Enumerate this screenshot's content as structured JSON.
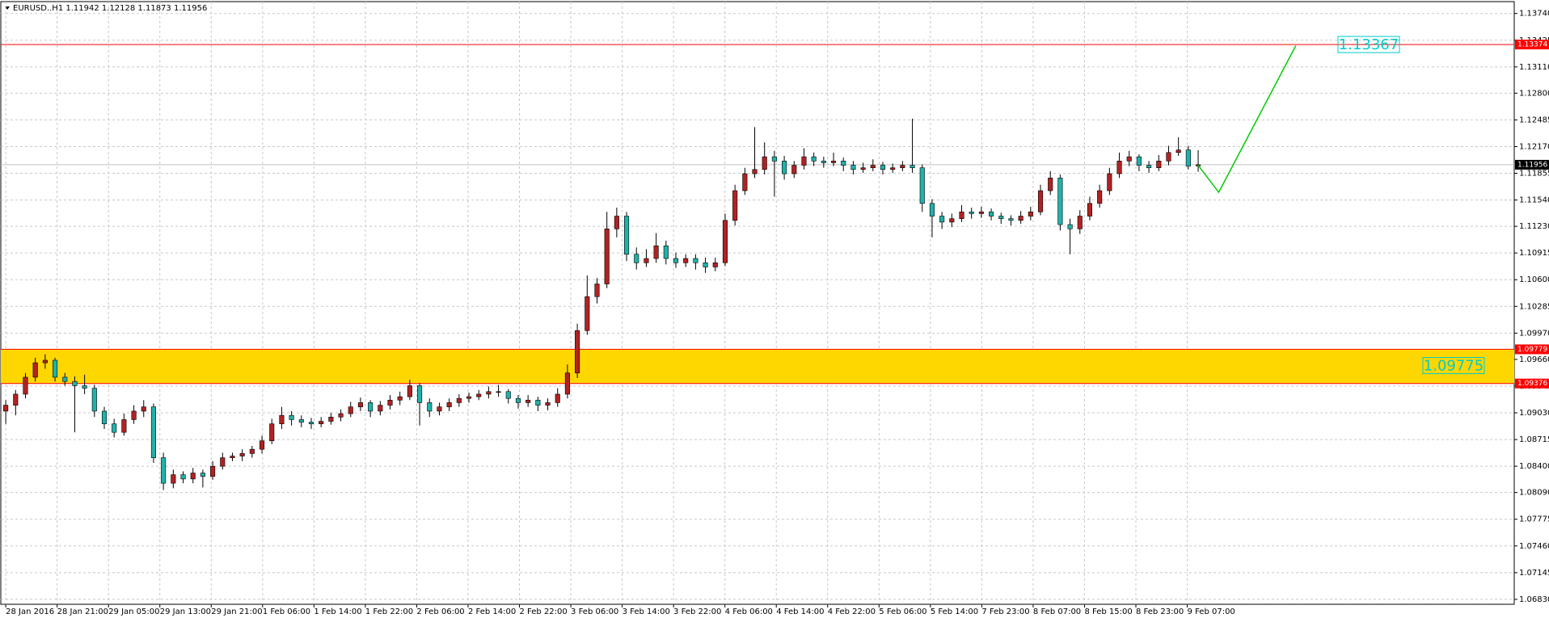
{
  "chart_data": {
    "type": "candlestick",
    "header": "EURUSD..H1  1.11942 1.12128 1.11873 1.11956",
    "categories": [
      "28 Jan 2016",
      "28 Jan 21:00",
      "29 Jan 05:00",
      "29 Jan 13:00",
      "29 Jan 21:00",
      "1 Feb 06:00",
      "1 Feb 14:00",
      "1 Feb 22:00",
      "2 Feb 06:00",
      "2 Feb 14:00",
      "2 Feb 22:00",
      "3 Feb 06:00",
      "3 Feb 14:00",
      "3 Feb 22:00",
      "4 Feb 06:00",
      "4 Feb 14:00",
      "4 Feb 22:00",
      "5 Feb 06:00",
      "5 Feb 14:00",
      "7 Feb 23:00",
      "8 Feb 07:00",
      "8 Feb 15:00",
      "8 Feb 23:00",
      "9 Feb 07:00"
    ],
    "ylim": [
      1.06772,
      1.1388
    ],
    "yticks": [
      {
        "value": 1.1374,
        "label": "1.13740"
      },
      {
        "value": 1.13425,
        "label": "1.13425"
      },
      {
        "value": 1.1311,
        "label": "1.13110"
      },
      {
        "value": 1.128,
        "label": "1.12800"
      },
      {
        "value": 1.12485,
        "label": "1.12485"
      },
      {
        "value": 1.1217,
        "label": "1.12170"
      },
      {
        "value": 1.11855,
        "label": "1.11855"
      },
      {
        "value": 1.1154,
        "label": "1.11540"
      },
      {
        "value": 1.1123,
        "label": "1.11230"
      },
      {
        "value": 1.10915,
        "label": "1.10915"
      },
      {
        "value": 1.106,
        "label": "1.10600"
      },
      {
        "value": 1.10285,
        "label": "1.10285"
      },
      {
        "value": 1.0997,
        "label": "1.09970"
      },
      {
        "value": 1.0966,
        "label": "1.09660"
      },
      {
        "value": 1.09345,
        "label": "1.09345"
      },
      {
        "value": 1.0903,
        "label": "1.09030"
      },
      {
        "value": 1.08715,
        "label": "1.08715"
      },
      {
        "value": 1.084,
        "label": "1.08400"
      },
      {
        "value": 1.0809,
        "label": "1.08090"
      },
      {
        "value": 1.07775,
        "label": "1.07775"
      },
      {
        "value": 1.0746,
        "label": "1.07460"
      },
      {
        "value": 1.07145,
        "label": "1.07145"
      },
      {
        "value": 1.0683,
        "label": "1.06830"
      }
    ],
    "grid": true,
    "up_color": "#b22222",
    "down_color": "#20b2aa",
    "ohlc": [
      [
        1.0905,
        1.0918,
        1.089,
        1.0912
      ],
      [
        1.0912,
        1.093,
        1.09,
        1.0925
      ],
      [
        1.0925,
        1.095,
        1.092,
        1.0945
      ],
      [
        1.0945,
        1.0968,
        1.094,
        1.0962
      ],
      [
        1.0962,
        1.0972,
        1.0955,
        1.0965
      ],
      [
        1.0965,
        1.0968,
        1.094,
        1.0945
      ],
      [
        1.0945,
        1.095,
        1.0935,
        1.094
      ],
      [
        1.094,
        1.0946,
        1.088,
        1.0935
      ],
      [
        1.0935,
        1.0948,
        1.0925,
        1.0932
      ],
      [
        1.0932,
        1.0936,
        1.0898,
        1.0905
      ],
      [
        1.0905,
        1.091,
        1.0884,
        1.089
      ],
      [
        1.089,
        1.0896,
        1.0874,
        1.088
      ],
      [
        1.088,
        1.0902,
        1.0876,
        1.0895
      ],
      [
        1.0895,
        1.0912,
        1.089,
        1.0905
      ],
      [
        1.0905,
        1.0918,
        1.0898,
        1.091
      ],
      [
        1.091,
        1.0914,
        1.0844,
        1.085
      ],
      [
        1.085,
        1.0856,
        1.0812,
        1.082
      ],
      [
        1.082,
        1.0836,
        1.0814,
        1.083
      ],
      [
        1.083,
        1.0834,
        1.082,
        1.0825
      ],
      [
        1.0825,
        1.0838,
        1.082,
        1.0832
      ],
      [
        1.0832,
        1.0836,
        1.0815,
        1.0828
      ],
      [
        1.0828,
        1.0846,
        1.0824,
        1.084
      ],
      [
        1.084,
        1.0856,
        1.0836,
        1.085
      ],
      [
        1.085,
        1.0856,
        1.0846,
        1.0852
      ],
      [
        1.0852,
        1.086,
        1.0846,
        1.0855
      ],
      [
        1.0855,
        1.0864,
        1.085,
        1.086
      ],
      [
        1.086,
        1.0876,
        1.0855,
        1.087
      ],
      [
        1.087,
        1.0896,
        1.0866,
        1.089
      ],
      [
        1.089,
        1.091,
        1.0884,
        1.09
      ],
      [
        1.09,
        1.0905,
        1.0888,
        1.0895
      ],
      [
        1.0895,
        1.09,
        1.0886,
        1.0892
      ],
      [
        1.0892,
        1.0897,
        1.0884,
        1.089
      ],
      [
        1.089,
        1.0898,
        1.0886,
        1.0893
      ],
      [
        1.0893,
        1.0903,
        1.0889,
        1.0898
      ],
      [
        1.0898,
        1.0907,
        1.0893,
        1.0902
      ],
      [
        1.0902,
        1.0916,
        1.0898,
        1.091
      ],
      [
        1.091,
        1.0921,
        1.0905,
        1.0915
      ],
      [
        1.0915,
        1.0918,
        1.0898,
        1.0905
      ],
      [
        1.0905,
        1.0917,
        1.09,
        1.0912
      ],
      [
        1.0912,
        1.0924,
        1.0907,
        1.0918
      ],
      [
        1.0918,
        1.0928,
        1.0912,
        1.0922
      ],
      [
        1.0922,
        1.0942,
        1.0918,
        1.0935
      ],
      [
        1.0935,
        1.0938,
        1.0888,
        1.0915
      ],
      [
        1.0915,
        1.092,
        1.0898,
        1.0905
      ],
      [
        1.0905,
        1.0915,
        1.09,
        1.091
      ],
      [
        1.091,
        1.092,
        1.0905,
        1.0915
      ],
      [
        1.0915,
        1.0925,
        1.091,
        1.092
      ],
      [
        1.092,
        1.0927,
        1.0915,
        1.0922
      ],
      [
        1.0922,
        1.093,
        1.0918,
        1.0925
      ],
      [
        1.0925,
        1.0934,
        1.092,
        1.0928
      ],
      [
        1.0928,
        1.0936,
        1.0922,
        1.0928
      ],
      [
        1.0928,
        1.0931,
        1.0914,
        1.092
      ],
      [
        1.092,
        1.0924,
        1.0908,
        1.0915
      ],
      [
        1.0915,
        1.0924,
        1.091,
        1.0918
      ],
      [
        1.0918,
        1.0922,
        1.0905,
        1.0912
      ],
      [
        1.0912,
        1.092,
        1.0906,
        1.0915
      ],
      [
        1.0915,
        1.0932,
        1.091,
        1.0925
      ],
      [
        1.0925,
        1.096,
        1.092,
        1.095
      ],
      [
        1.095,
        1.1008,
        1.0944,
        1.1
      ],
      [
        1.1,
        1.1065,
        1.0995,
        1.104
      ],
      [
        1.104,
        1.1062,
        1.1032,
        1.1055
      ],
      [
        1.1055,
        1.114,
        1.105,
        1.112
      ],
      [
        1.112,
        1.1145,
        1.111,
        1.1135
      ],
      [
        1.1135,
        1.114,
        1.1082,
        1.109
      ],
      [
        1.109,
        1.1098,
        1.1072,
        1.108
      ],
      [
        1.108,
        1.1096,
        1.1075,
        1.1085
      ],
      [
        1.1085,
        1.1115,
        1.108,
        1.11
      ],
      [
        1.11,
        1.1106,
        1.1078,
        1.1085
      ],
      [
        1.1085,
        1.1092,
        1.1074,
        1.108
      ],
      [
        1.108,
        1.109,
        1.1075,
        1.1085
      ],
      [
        1.1085,
        1.109,
        1.1072,
        1.108
      ],
      [
        1.108,
        1.1086,
        1.1068,
        1.1075
      ],
      [
        1.1075,
        1.1086,
        1.107,
        1.108
      ],
      [
        1.108,
        1.1138,
        1.1076,
        1.113
      ],
      [
        1.113,
        1.1172,
        1.1124,
        1.1165
      ],
      [
        1.1165,
        1.1192,
        1.116,
        1.1185
      ],
      [
        1.1185,
        1.124,
        1.118,
        1.119
      ],
      [
        1.119,
        1.1222,
        1.1184,
        1.1205
      ],
      [
        1.1205,
        1.1212,
        1.1158,
        1.12
      ],
      [
        1.12,
        1.1206,
        1.1178,
        1.1185
      ],
      [
        1.1185,
        1.12,
        1.118,
        1.1195
      ],
      [
        1.1195,
        1.1215,
        1.119,
        1.1205
      ],
      [
        1.1205,
        1.121,
        1.1194,
        1.12
      ],
      [
        1.12,
        1.1205,
        1.1192,
        1.1198
      ],
      [
        1.1198,
        1.121,
        1.1194,
        1.12
      ],
      [
        1.12,
        1.1204,
        1.1188,
        1.1195
      ],
      [
        1.1195,
        1.12,
        1.1184,
        1.119
      ],
      [
        1.119,
        1.1198,
        1.1186,
        1.1192
      ],
      [
        1.1192,
        1.1202,
        1.1188,
        1.1195
      ],
      [
        1.1195,
        1.1199,
        1.1184,
        1.119
      ],
      [
        1.119,
        1.1197,
        1.1186,
        1.1192
      ],
      [
        1.1192,
        1.12,
        1.1188,
        1.1195
      ],
      [
        1.1195,
        1.125,
        1.1186,
        1.1192
      ],
      [
        1.1192,
        1.1196,
        1.114,
        1.115
      ],
      [
        1.115,
        1.1155,
        1.111,
        1.1135
      ],
      [
        1.1135,
        1.114,
        1.112,
        1.1128
      ],
      [
        1.1128,
        1.1138,
        1.1122,
        1.1132
      ],
      [
        1.1132,
        1.1148,
        1.1128,
        1.114
      ],
      [
        1.114,
        1.1145,
        1.1132,
        1.1138
      ],
      [
        1.1138,
        1.1146,
        1.1133,
        1.114
      ],
      [
        1.114,
        1.1144,
        1.113,
        1.1135
      ],
      [
        1.1135,
        1.1139,
        1.1126,
        1.1132
      ],
      [
        1.1132,
        1.1136,
        1.1124,
        1.113
      ],
      [
        1.113,
        1.1141,
        1.1126,
        1.1135
      ],
      [
        1.1135,
        1.1146,
        1.113,
        1.114
      ],
      [
        1.114,
        1.1172,
        1.1136,
        1.1165
      ],
      [
        1.1165,
        1.1188,
        1.116,
        1.118
      ],
      [
        1.118,
        1.1184,
        1.1118,
        1.1125
      ],
      [
        1.1125,
        1.1132,
        1.109,
        1.112
      ],
      [
        1.112,
        1.1142,
        1.1114,
        1.1135
      ],
      [
        1.1135,
        1.1158,
        1.113,
        1.115
      ],
      [
        1.115,
        1.1172,
        1.1145,
        1.1165
      ],
      [
        1.1165,
        1.1192,
        1.116,
        1.1185
      ],
      [
        1.1185,
        1.121,
        1.118,
        1.12
      ],
      [
        1.12,
        1.1212,
        1.1194,
        1.1205
      ],
      [
        1.1205,
        1.1208,
        1.1188,
        1.1195
      ],
      [
        1.1195,
        1.12,
        1.1186,
        1.1192
      ],
      [
        1.1192,
        1.1207,
        1.1188,
        1.12
      ],
      [
        1.12,
        1.1218,
        1.1195,
        1.121
      ],
      [
        1.121,
        1.1228,
        1.1206,
        1.1213
      ],
      [
        1.1213,
        1.1218,
        1.119,
        1.1194
      ],
      [
        1.11942,
        1.12128,
        1.11873,
        1.11956
      ]
    ],
    "levels": [
      {
        "price": 1.13374,
        "color": "#ff0000"
      },
      {
        "price": 1.11956,
        "color": "#000000"
      },
      {
        "price": 1.09779,
        "color": "#ff0000"
      },
      {
        "price": 1.09376,
        "color": "#ff0000"
      }
    ],
    "zone_color": "#ffd700",
    "projection": {
      "color": "#00cc00",
      "x": [
        185.7,
        188.9,
        200.9
      ],
      "y": [
        1.1195,
        1.1163,
        1.1336
      ]
    },
    "annotations": [
      {
        "text": "1.13367",
        "color": "#00cccc"
      },
      {
        "text": "1.09775",
        "color": "#00cccc"
      }
    ]
  }
}
